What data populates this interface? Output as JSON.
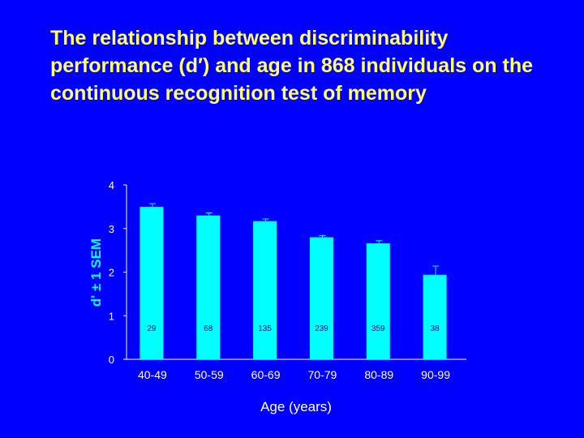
{
  "title": "The relationship between discriminability performance (d′) and age in 868 individuals on the continuous recognition test of memory",
  "colors": {
    "background": "#0000ff",
    "title": "#ffff66",
    "bar": "#00ffff",
    "axis": "#ffffff",
    "ylabel": "#00ffff",
    "count_label": "#000080"
  },
  "chart_data": {
    "type": "bar",
    "categories": [
      "40-49",
      "50-59",
      "60-69",
      "70-79",
      "80-89",
      "90-99"
    ],
    "values": [
      3.5,
      3.3,
      3.17,
      2.8,
      2.66,
      1.94
    ],
    "errors": [
      0.07,
      0.06,
      0.05,
      0.04,
      0.06,
      0.2
    ],
    "counts": [
      "29",
      "68",
      "135",
      "239",
      "359",
      "38"
    ],
    "xlabel": "Age (years)",
    "ylabel": "d' ± 1 SEM",
    "ylim": [
      0,
      4
    ],
    "yticks": [
      "0",
      "1",
      "2",
      "3",
      "4"
    ],
    "grid": false
  }
}
